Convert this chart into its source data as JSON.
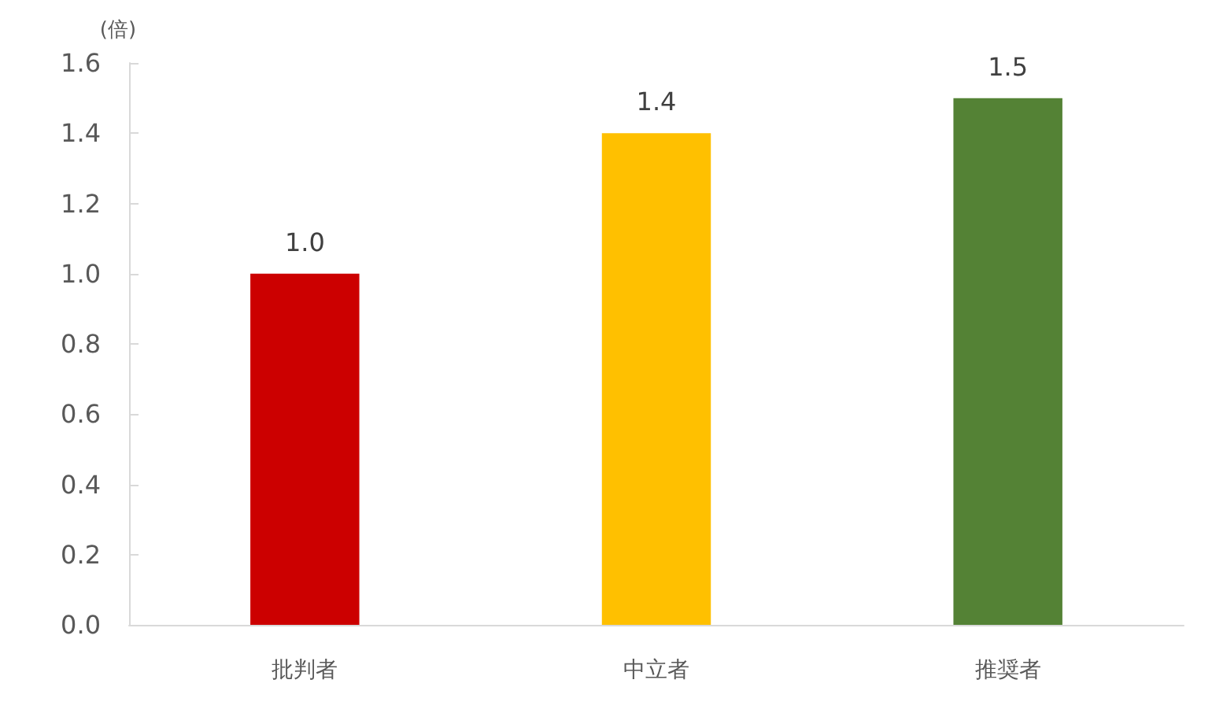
{
  "chart_data": {
    "type": "bar",
    "ylabel": "(倍)",
    "categories": [
      "批判者",
      "中立者",
      "推奨者"
    ],
    "values": [
      1.0,
      1.4,
      1.5
    ],
    "colors": [
      "#cc0000",
      "#ffc000",
      "#548235"
    ],
    "ylim": [
      0,
      1.6
    ],
    "yticks": [
      {
        "value": 0,
        "label": "0.0"
      },
      0.2,
      0.4,
      0.6,
      0.8,
      {
        "value": 1,
        "label": "1.0"
      },
      1.2,
      1.4,
      1.6
    ],
    "value_labels": [
      "1.0",
      "1.4",
      "1.5"
    ]
  }
}
